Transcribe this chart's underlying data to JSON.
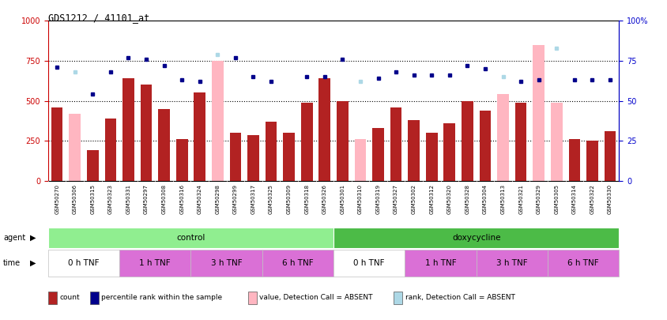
{
  "title": "GDS1212 / 41101_at",
  "samples": [
    "GSM50270",
    "GSM50306",
    "GSM50315",
    "GSM50323",
    "GSM50331",
    "GSM50297",
    "GSM50308",
    "GSM50316",
    "GSM50324",
    "GSM50298",
    "GSM50299",
    "GSM50317",
    "GSM50325",
    "GSM50309",
    "GSM50318",
    "GSM50326",
    "GSM50301",
    "GSM50310",
    "GSM50319",
    "GSM50327",
    "GSM50302",
    "GSM50312",
    "GSM50320",
    "GSM50328",
    "GSM50304",
    "GSM50313",
    "GSM50321",
    "GSM50329",
    "GSM50305",
    "GSM50314",
    "GSM50322",
    "GSM50330"
  ],
  "counts": [
    460,
    null,
    190,
    390,
    640,
    600,
    450,
    260,
    550,
    null,
    300,
    285,
    370,
    300,
    490,
    640,
    500,
    null,
    330,
    460,
    380,
    300,
    360,
    500,
    440,
    null,
    490,
    null,
    null,
    260,
    250,
    310
  ],
  "absent_counts": [
    null,
    420,
    null,
    null,
    null,
    null,
    null,
    null,
    null,
    750,
    null,
    null,
    null,
    null,
    null,
    null,
    null,
    260,
    null,
    null,
    null,
    null,
    null,
    null,
    null,
    540,
    null,
    850,
    490,
    null,
    null,
    null
  ],
  "percentile": [
    71,
    null,
    54,
    68,
    77,
    76,
    72,
    63,
    62,
    null,
    77,
    65,
    62,
    null,
    65,
    65,
    76,
    null,
    64,
    68,
    66,
    66,
    66,
    72,
    70,
    null,
    62,
    63,
    null,
    63,
    63,
    63
  ],
  "absent_percentile": [
    null,
    68,
    null,
    null,
    null,
    null,
    null,
    null,
    null,
    79,
    null,
    null,
    null,
    null,
    null,
    null,
    null,
    62,
    null,
    null,
    null,
    null,
    null,
    null,
    null,
    65,
    null,
    null,
    83,
    null,
    null,
    null
  ],
  "count_color": "#b22222",
  "absent_color": "#ffb6c1",
  "percentile_color": "#00008b",
  "absent_pct_color": "#add8e6",
  "ylim_left": [
    0,
    1000
  ],
  "ylim_right": [
    0,
    100
  ],
  "yticks_left": [
    0,
    250,
    500,
    750,
    1000
  ],
  "yticks_right": [
    0,
    25,
    50,
    75,
    100
  ],
  "ytick_labels_right": [
    "0",
    "25",
    "50",
    "75",
    "100%"
  ],
  "agent_groups": [
    {
      "label": "control",
      "start": 0,
      "end": 16,
      "color": "#90ee90"
    },
    {
      "label": "doxycycline",
      "start": 16,
      "end": 32,
      "color": "#4cbb47"
    }
  ],
  "time_groups": [
    {
      "label": "0 h TNF",
      "start": 0,
      "end": 4,
      "color": "#ffffff"
    },
    {
      "label": "1 h TNF",
      "start": 4,
      "end": 8,
      "color": "#da70d6"
    },
    {
      "label": "3 h TNF",
      "start": 8,
      "end": 12,
      "color": "#da70d6"
    },
    {
      "label": "6 h TNF",
      "start": 12,
      "end": 16,
      "color": "#da70d6"
    },
    {
      "label": "0 h TNF",
      "start": 16,
      "end": 20,
      "color": "#ffffff"
    },
    {
      "label": "1 h TNF",
      "start": 20,
      "end": 24,
      "color": "#da70d6"
    },
    {
      "label": "3 h TNF",
      "start": 24,
      "end": 28,
      "color": "#da70d6"
    },
    {
      "label": "6 h TNF",
      "start": 28,
      "end": 32,
      "color": "#da70d6"
    }
  ],
  "legend": [
    {
      "label": "count",
      "color": "#b22222"
    },
    {
      "label": "percentile rank within the sample",
      "color": "#00008b"
    },
    {
      "label": "value, Detection Call = ABSENT",
      "color": "#ffb6c1"
    },
    {
      "label": "rank, Detection Call = ABSENT",
      "color": "#add8e6"
    }
  ]
}
